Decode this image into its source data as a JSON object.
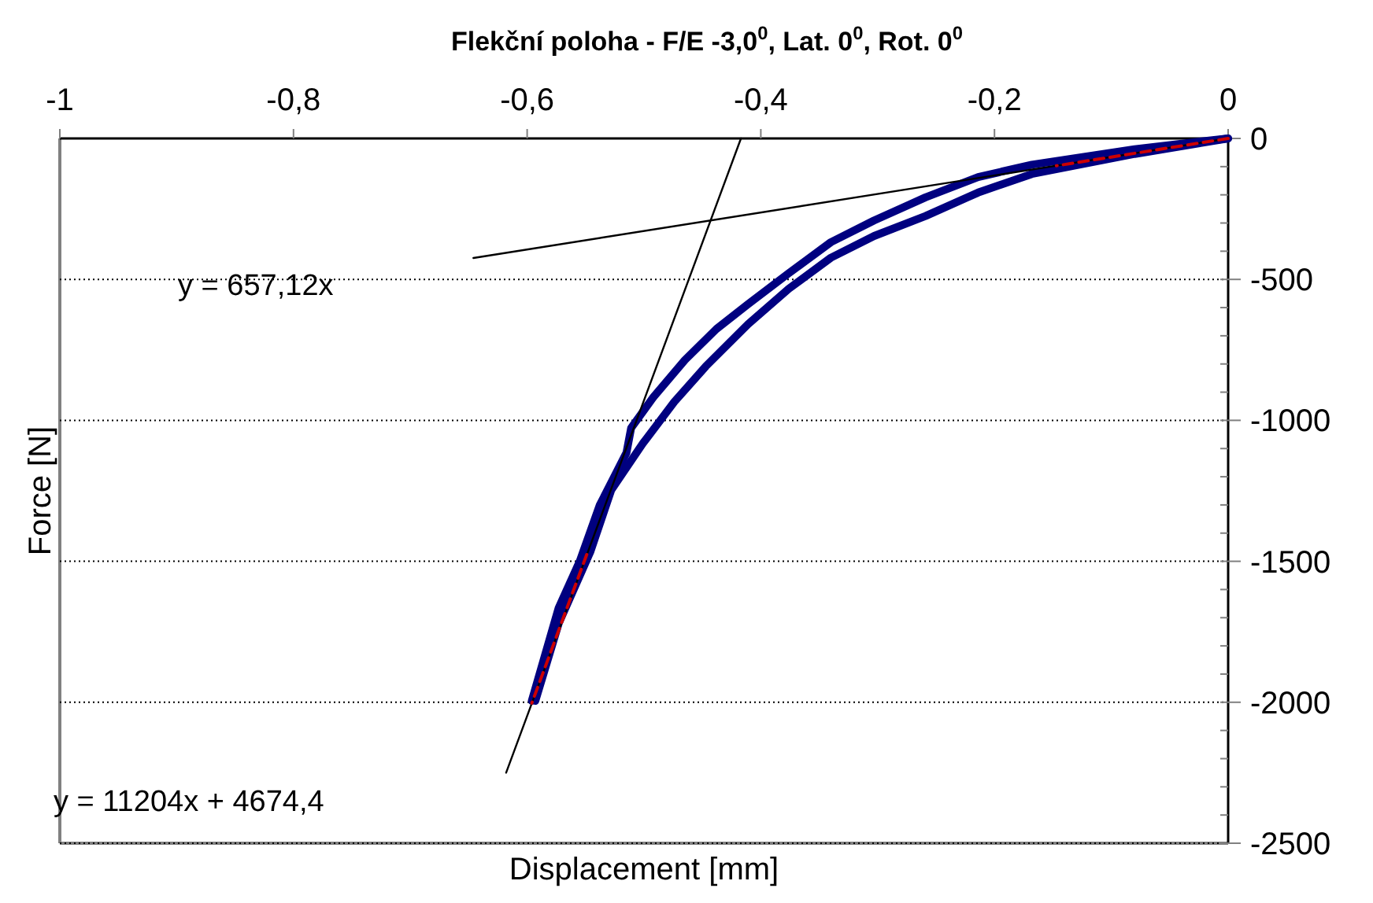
{
  "chart_data": {
    "type": "line",
    "title": "Flekční poloha - F/E -3,0$^{0}$, Lat. 0$^{0}$, Rot. 0$^{0}$",
    "xlabel": "Displacement [mm]",
    "ylabel": "Force [N]",
    "xlim": [
      -1,
      0
    ],
    "ylim": [
      -2500,
      0
    ],
    "xticks": [
      {
        "value": -1,
        "label": "-1"
      },
      {
        "value": -0.8,
        "label": "-0,8"
      },
      {
        "value": -0.6,
        "label": "-0,6"
      },
      {
        "value": -0.4,
        "label": "-0,4"
      },
      {
        "value": -0.2,
        "label": "-0,2"
      },
      {
        "value": 0,
        "label": "0"
      }
    ],
    "yticks": [
      0,
      {
        "value": -100,
        "label": null
      },
      {
        "value": -200,
        "label": null
      },
      {
        "value": -300,
        "label": null
      },
      {
        "value": -400,
        "label": null
      },
      -500,
      {
        "value": -600,
        "label": null
      },
      {
        "value": -700,
        "label": null
      },
      {
        "value": -800,
        "label": null
      },
      {
        "value": -900,
        "label": null
      },
      -1000,
      {
        "value": -1100,
        "label": null
      },
      {
        "value": -1200,
        "label": null
      },
      {
        "value": -1300,
        "label": null
      },
      {
        "value": -1400,
        "label": null
      },
      -1500,
      {
        "value": -1600,
        "label": null
      },
      {
        "value": -1700,
        "label": null
      },
      {
        "value": -1800,
        "label": null
      },
      {
        "value": -1900,
        "label": null
      },
      -2000,
      {
        "value": -2100,
        "label": null
      },
      {
        "value": -2200,
        "label": null
      },
      {
        "value": -2300,
        "label": null
      },
      {
        "value": -2400,
        "label": null
      },
      -2500
    ],
    "grid": "y",
    "series": [
      {
        "color": "#000080",
        "x": [
          0,
          -0.08,
          -0.168,
          -0.214,
          -0.259,
          -0.303,
          -0.34,
          -0.376,
          -0.411,
          -0.438,
          -0.465,
          -0.492,
          -0.511,
          -0.515,
          -0.538,
          -0.555,
          -0.573,
          -0.596
        ],
        "values": [
          0,
          -38,
          -93,
          -137,
          -209,
          -291,
          -368,
          -478,
          -588,
          -676,
          -786,
          -918,
          -1027,
          -1115,
          -1302,
          -1500,
          -1665,
          -1995
        ]
      },
      {
        "color": "#000080",
        "x": [
          0,
          -0.08,
          -0.168,
          -0.214,
          -0.259,
          -0.303,
          -0.34,
          -0.376,
          -0.411,
          -0.447,
          -0.474,
          -0.497,
          -0.501,
          -0.528,
          -0.546,
          -0.573,
          -0.593
        ],
        "values": [
          0,
          -55,
          -126,
          -192,
          -275,
          -346,
          -423,
          -533,
          -659,
          -808,
          -934,
          -1060,
          -1082,
          -1247,
          -1467,
          -1720,
          -1995
        ]
      },
      {
        "color": "#000000",
        "x": [
          -0.646,
          0
        ],
        "values": [
          -424,
          0
        ]
      },
      {
        "color": "#000000",
        "x": [
          -0.417,
          -0.618
        ],
        "values": [
          0,
          -2250
        ]
      },
      {
        "color": "#cc0000",
        "line_style": "dashed",
        "x": [
          0,
          -0.147,
          null,
          -0.549,
          -0.596
        ],
        "values": [
          0,
          -97,
          null,
          -1476,
          -2003
        ]
      }
    ],
    "annotations": [
      "y = 657,12x",
      "y = 11204x + 4674,4"
    ]
  }
}
